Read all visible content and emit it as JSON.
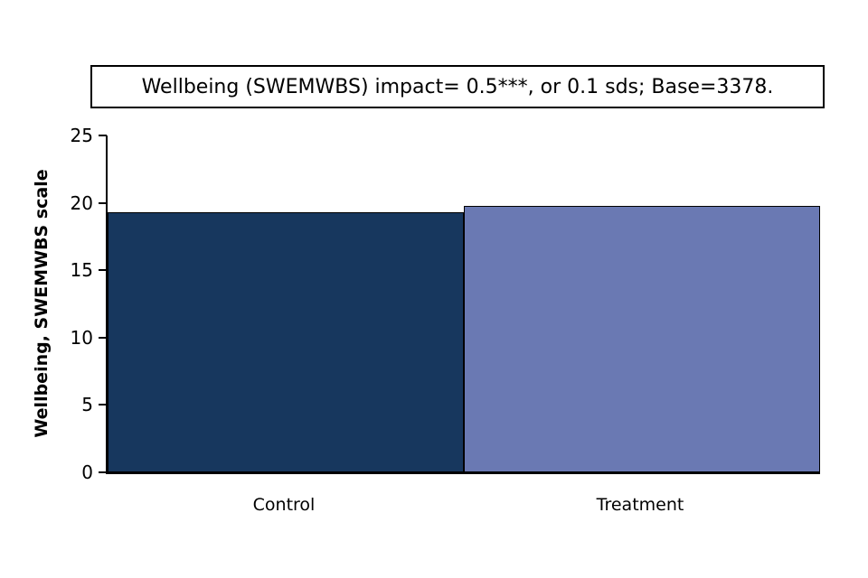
{
  "chart_data": {
    "type": "bar",
    "title": "Wellbeing (SWEMWBS) impact= 0.5***, or 0.1 sds; Base=3378.",
    "categories": [
      "Control",
      "Treatment"
    ],
    "values": [
      19.3,
      19.8
    ],
    "xlabel": "",
    "ylabel": "Wellbeing, SWEMWBS scale",
    "ylim": [
      0,
      25
    ],
    "yticks": [
      0,
      5,
      10,
      15,
      20,
      25
    ],
    "grid": false,
    "legend": "none",
    "bar_colors": [
      "#17375E",
      "#6A79B3"
    ],
    "bar_outline": "#000000",
    "background": "#FFFFFF"
  }
}
